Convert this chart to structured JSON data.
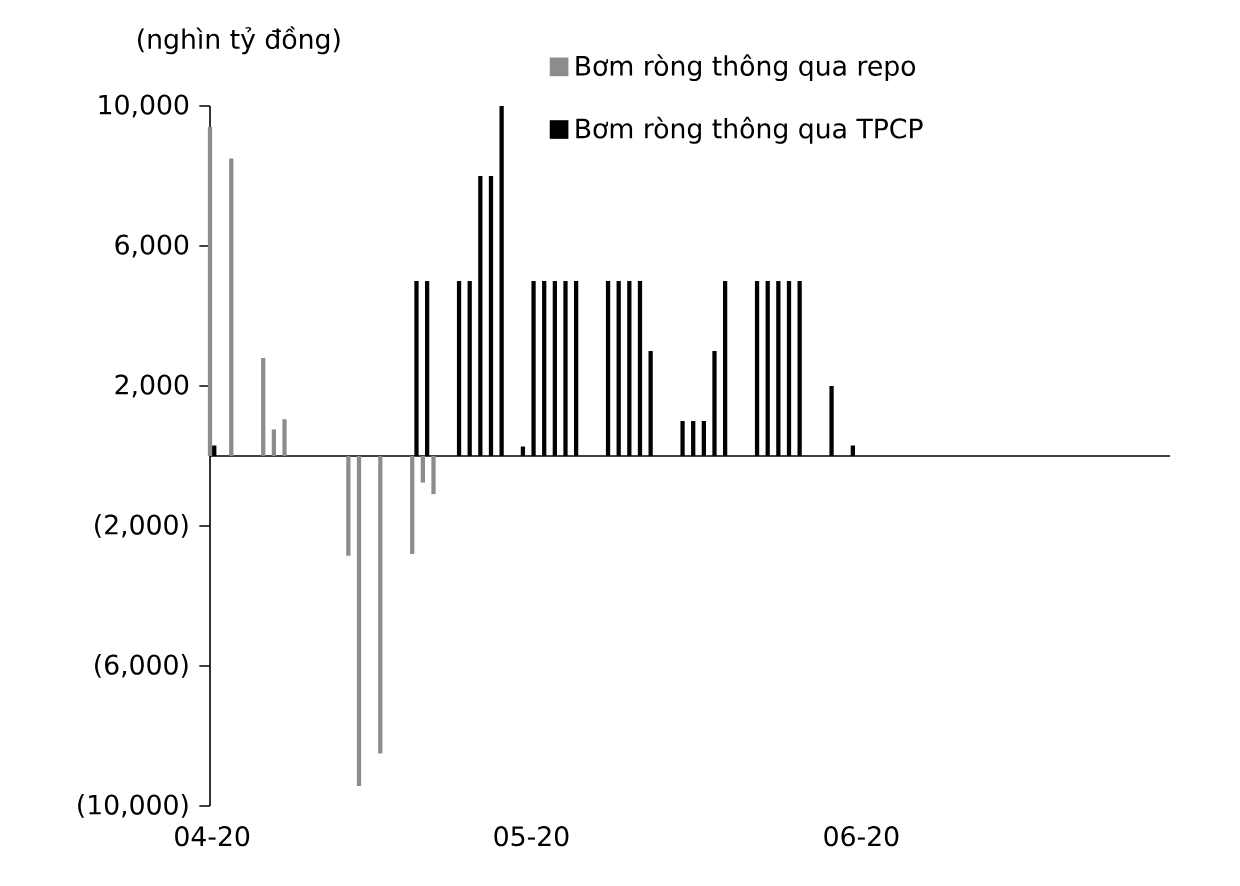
{
  "chart_data": {
    "type": "bar",
    "ylabel": "(nghìn tỷ đồng)",
    "legend": "top right",
    "xlim": [
      "2020-04-01",
      "2020-06-30"
    ],
    "xticks": [
      {
        "value": "2020-04-01",
        "label": "04-20"
      },
      {
        "value": "2020-05-01",
        "label": "05-20"
      },
      {
        "value": "2020-06-01",
        "label": "06-20"
      }
    ],
    "ylim": [
      -10000,
      10000
    ],
    "yticks": [
      {
        "value": -10000,
        "label": "(10,000)"
      },
      {
        "value": -6000,
        "label": "(6,000)"
      },
      {
        "value": -2000,
        "label": "(2,000)"
      },
      {
        "value": 2000,
        "label": "2,000"
      },
      {
        "value": 6000,
        "label": "6,000"
      },
      {
        "value": 10000,
        "label": "10,000"
      }
    ],
    "series": [
      {
        "name": "Bơm ròng thông qua repo",
        "color": "#8c8c8c",
        "x": [
          "2020-04-01",
          "2020-04-03",
          "2020-04-06",
          "2020-04-07",
          "2020-04-08",
          "2020-04-14",
          "2020-04-15",
          "2020-04-17",
          "2020-04-20",
          "2020-04-21",
          "2020-04-22"
        ],
        "values": [
          9400,
          8500,
          2800,
          760,
          1050,
          -2850,
          -9430,
          -8500,
          -2800,
          -760,
          -1090
        ]
      },
      {
        "name": "Bơm ròng thông qua TPCP",
        "color": "#000000",
        "x": [
          "2020-04-01",
          "2020-04-20",
          "2020-04-21",
          "2020-04-24",
          "2020-04-25",
          "2020-04-26",
          "2020-04-27",
          "2020-04-28",
          "2020-04-30",
          "2020-05-01",
          "2020-05-02",
          "2020-05-03",
          "2020-05-04",
          "2020-05-05",
          "2020-05-08",
          "2020-05-09",
          "2020-05-10",
          "2020-05-11",
          "2020-05-12",
          "2020-05-15",
          "2020-05-16",
          "2020-05-17",
          "2020-05-18",
          "2020-05-19",
          "2020-05-22",
          "2020-05-23",
          "2020-05-24",
          "2020-05-25",
          "2020-05-26",
          "2020-05-29",
          "2020-05-31"
        ],
        "values": [
          300,
          5000,
          5000,
          5000,
          5000,
          8000,
          8000,
          10000,
          270,
          5000,
          5000,
          5000,
          5000,
          5000,
          5000,
          5000,
          5000,
          5000,
          3000,
          1000,
          1000,
          1000,
          3000,
          5000,
          5000,
          5000,
          5000,
          5000,
          5000,
          2000,
          300
        ]
      }
    ]
  }
}
